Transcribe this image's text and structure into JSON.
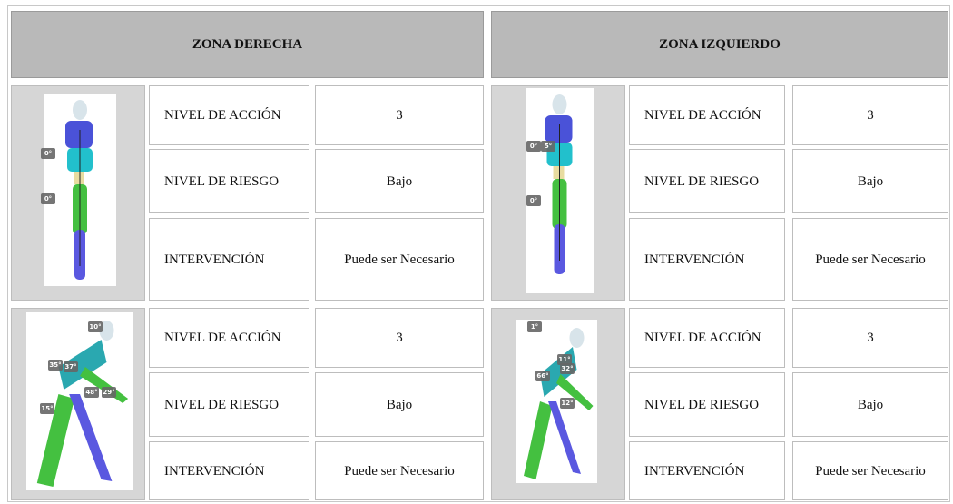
{
  "header": {
    "left": "ZONA DERECHA",
    "right": "ZONA IZQUIERDO"
  },
  "panels": [
    {
      "angles": [
        "0°",
        "0°"
      ],
      "rows": [
        [
          "NIVEL DE ACCIÓN",
          3
        ],
        [
          "NIVEL DE RIESGO",
          "Bajo"
        ],
        [
          "INTERVENCIÓN",
          "Puede ser Necesario"
        ]
      ]
    },
    {
      "angles": [
        "0°",
        "5°",
        "0°"
      ],
      "rows": [
        [
          "NIVEL DE ACCIÓN",
          3
        ],
        [
          "NIVEL DE RIESGO",
          "Bajo"
        ],
        [
          "INTERVENCIÓN",
          "Puede ser Necesario"
        ]
      ]
    },
    {
      "angles": [
        "10°",
        "35°",
        "37°",
        "48°",
        "29°",
        "15°"
      ],
      "rows": [
        [
          "NIVEL DE ACCIÓN",
          3
        ],
        [
          "NIVEL DE RIESGO",
          "Bajo"
        ],
        [
          "INTERVENCIÓN",
          "Puede ser Necesario"
        ]
      ]
    },
    {
      "angles": [
        "1°",
        "11°",
        "32°",
        "66°",
        "12°"
      ],
      "rows": [
        [
          "NIVEL DE ACCIÓN",
          3
        ],
        [
          "NIVEL DE RIESGO",
          "Bajo"
        ],
        [
          "INTERVENCIÓN",
          "Puede ser Necesario"
        ]
      ]
    }
  ]
}
